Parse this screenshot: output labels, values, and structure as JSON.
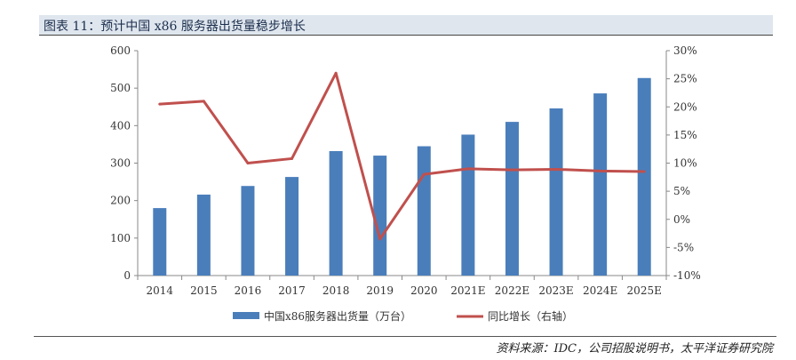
{
  "title": "图表 11：预计中国 x86 服务器出货量稳步增长",
  "source": "资料来源：IDC，公司招股说明书，太平洋证券研究院",
  "chart_data": {
    "type": "bar",
    "categories": [
      "2014",
      "2015",
      "2016",
      "2017",
      "2018",
      "2019",
      "2020",
      "2021E",
      "2022E",
      "2023E",
      "2024E",
      "2025E"
    ],
    "series": [
      {
        "name": "中国x86服务器出货量（万台）",
        "type": "bar",
        "axis": "left",
        "color": "#4a7ebb",
        "values": [
          180,
          216,
          239,
          263,
          332,
          320,
          345,
          376,
          410,
          446,
          486,
          527
        ]
      },
      {
        "name": "同比增长（右轴）",
        "type": "line",
        "axis": "right",
        "color": "#c0504d",
        "values": [
          20.5,
          21.0,
          10.0,
          10.8,
          26.0,
          -3.5,
          8.0,
          9.0,
          8.8,
          8.9,
          8.6,
          8.5
        ]
      }
    ],
    "y_left": {
      "ylim": [
        0,
        600
      ],
      "ticks": [
        "0",
        "100",
        "200",
        "300",
        "400",
        "500",
        "600"
      ]
    },
    "y_right": {
      "ylim": [
        -10,
        30
      ],
      "ticks": [
        "-10%",
        "-5%",
        "0%",
        "5%",
        "10%",
        "15%",
        "20%",
        "25%",
        "30%"
      ]
    },
    "grid": false,
    "legend_position": "bottom"
  }
}
